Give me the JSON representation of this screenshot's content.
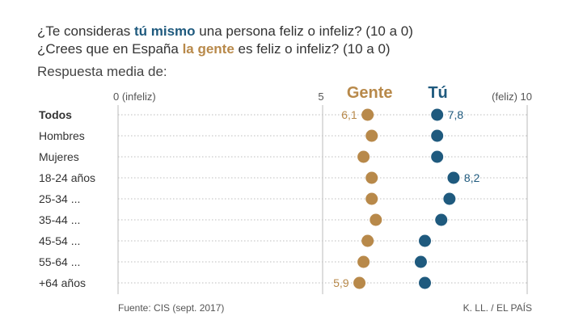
{
  "questions": {
    "q1": {
      "pre": "¿Te consideras ",
      "highlight": "tú mismo",
      "post": " una persona feliz o infeliz? (10 a 0)"
    },
    "q2": {
      "pre": "¿Crees que en España ",
      "highlight": "la gente",
      "post": " es feliz o infeliz? (10 a 0)"
    }
  },
  "subtitle": "Respuesta media de:",
  "colors": {
    "gente": "#b8894a",
    "tu": "#1f5a7e",
    "grid": "#bbbbbb"
  },
  "footer": {
    "source": "Fuente: CIS (sept. 2017)",
    "credit": "K. LL. / EL PAÍS"
  },
  "chart_data": {
    "type": "scatter",
    "xlim": [
      0,
      10
    ],
    "ticks": [
      {
        "value": 0,
        "label": "0 (infeliz)"
      },
      {
        "value": 5,
        "label": "5"
      },
      {
        "value": 10,
        "label": "(feliz) 10"
      }
    ],
    "categories": [
      "Todos",
      "Hombres",
      "Mujeres",
      "18-24 años",
      "25-34 ...",
      "35-44 ...",
      "45-54 ...",
      "55-64 ...",
      "+64 años"
    ],
    "series": [
      {
        "name": "Gente",
        "color": "#b8894a",
        "values": [
          6.1,
          6.2,
          6.0,
          6.2,
          6.2,
          6.3,
          6.1,
          6.0,
          5.9
        ]
      },
      {
        "name": "Tú",
        "color": "#1f5a7e",
        "values": [
          7.8,
          7.8,
          7.8,
          8.2,
          8.1,
          7.9,
          7.5,
          7.4,
          7.5
        ]
      }
    ],
    "data_labels": [
      {
        "series": "Gente",
        "category": "Todos",
        "text": "6,1"
      },
      {
        "series": "Tú",
        "category": "Todos",
        "text": "7,8"
      },
      {
        "series": "Tú",
        "category": "18-24 años",
        "text": "8,2"
      },
      {
        "series": "Gente",
        "category": "+64 años",
        "text": "5,9"
      }
    ]
  }
}
